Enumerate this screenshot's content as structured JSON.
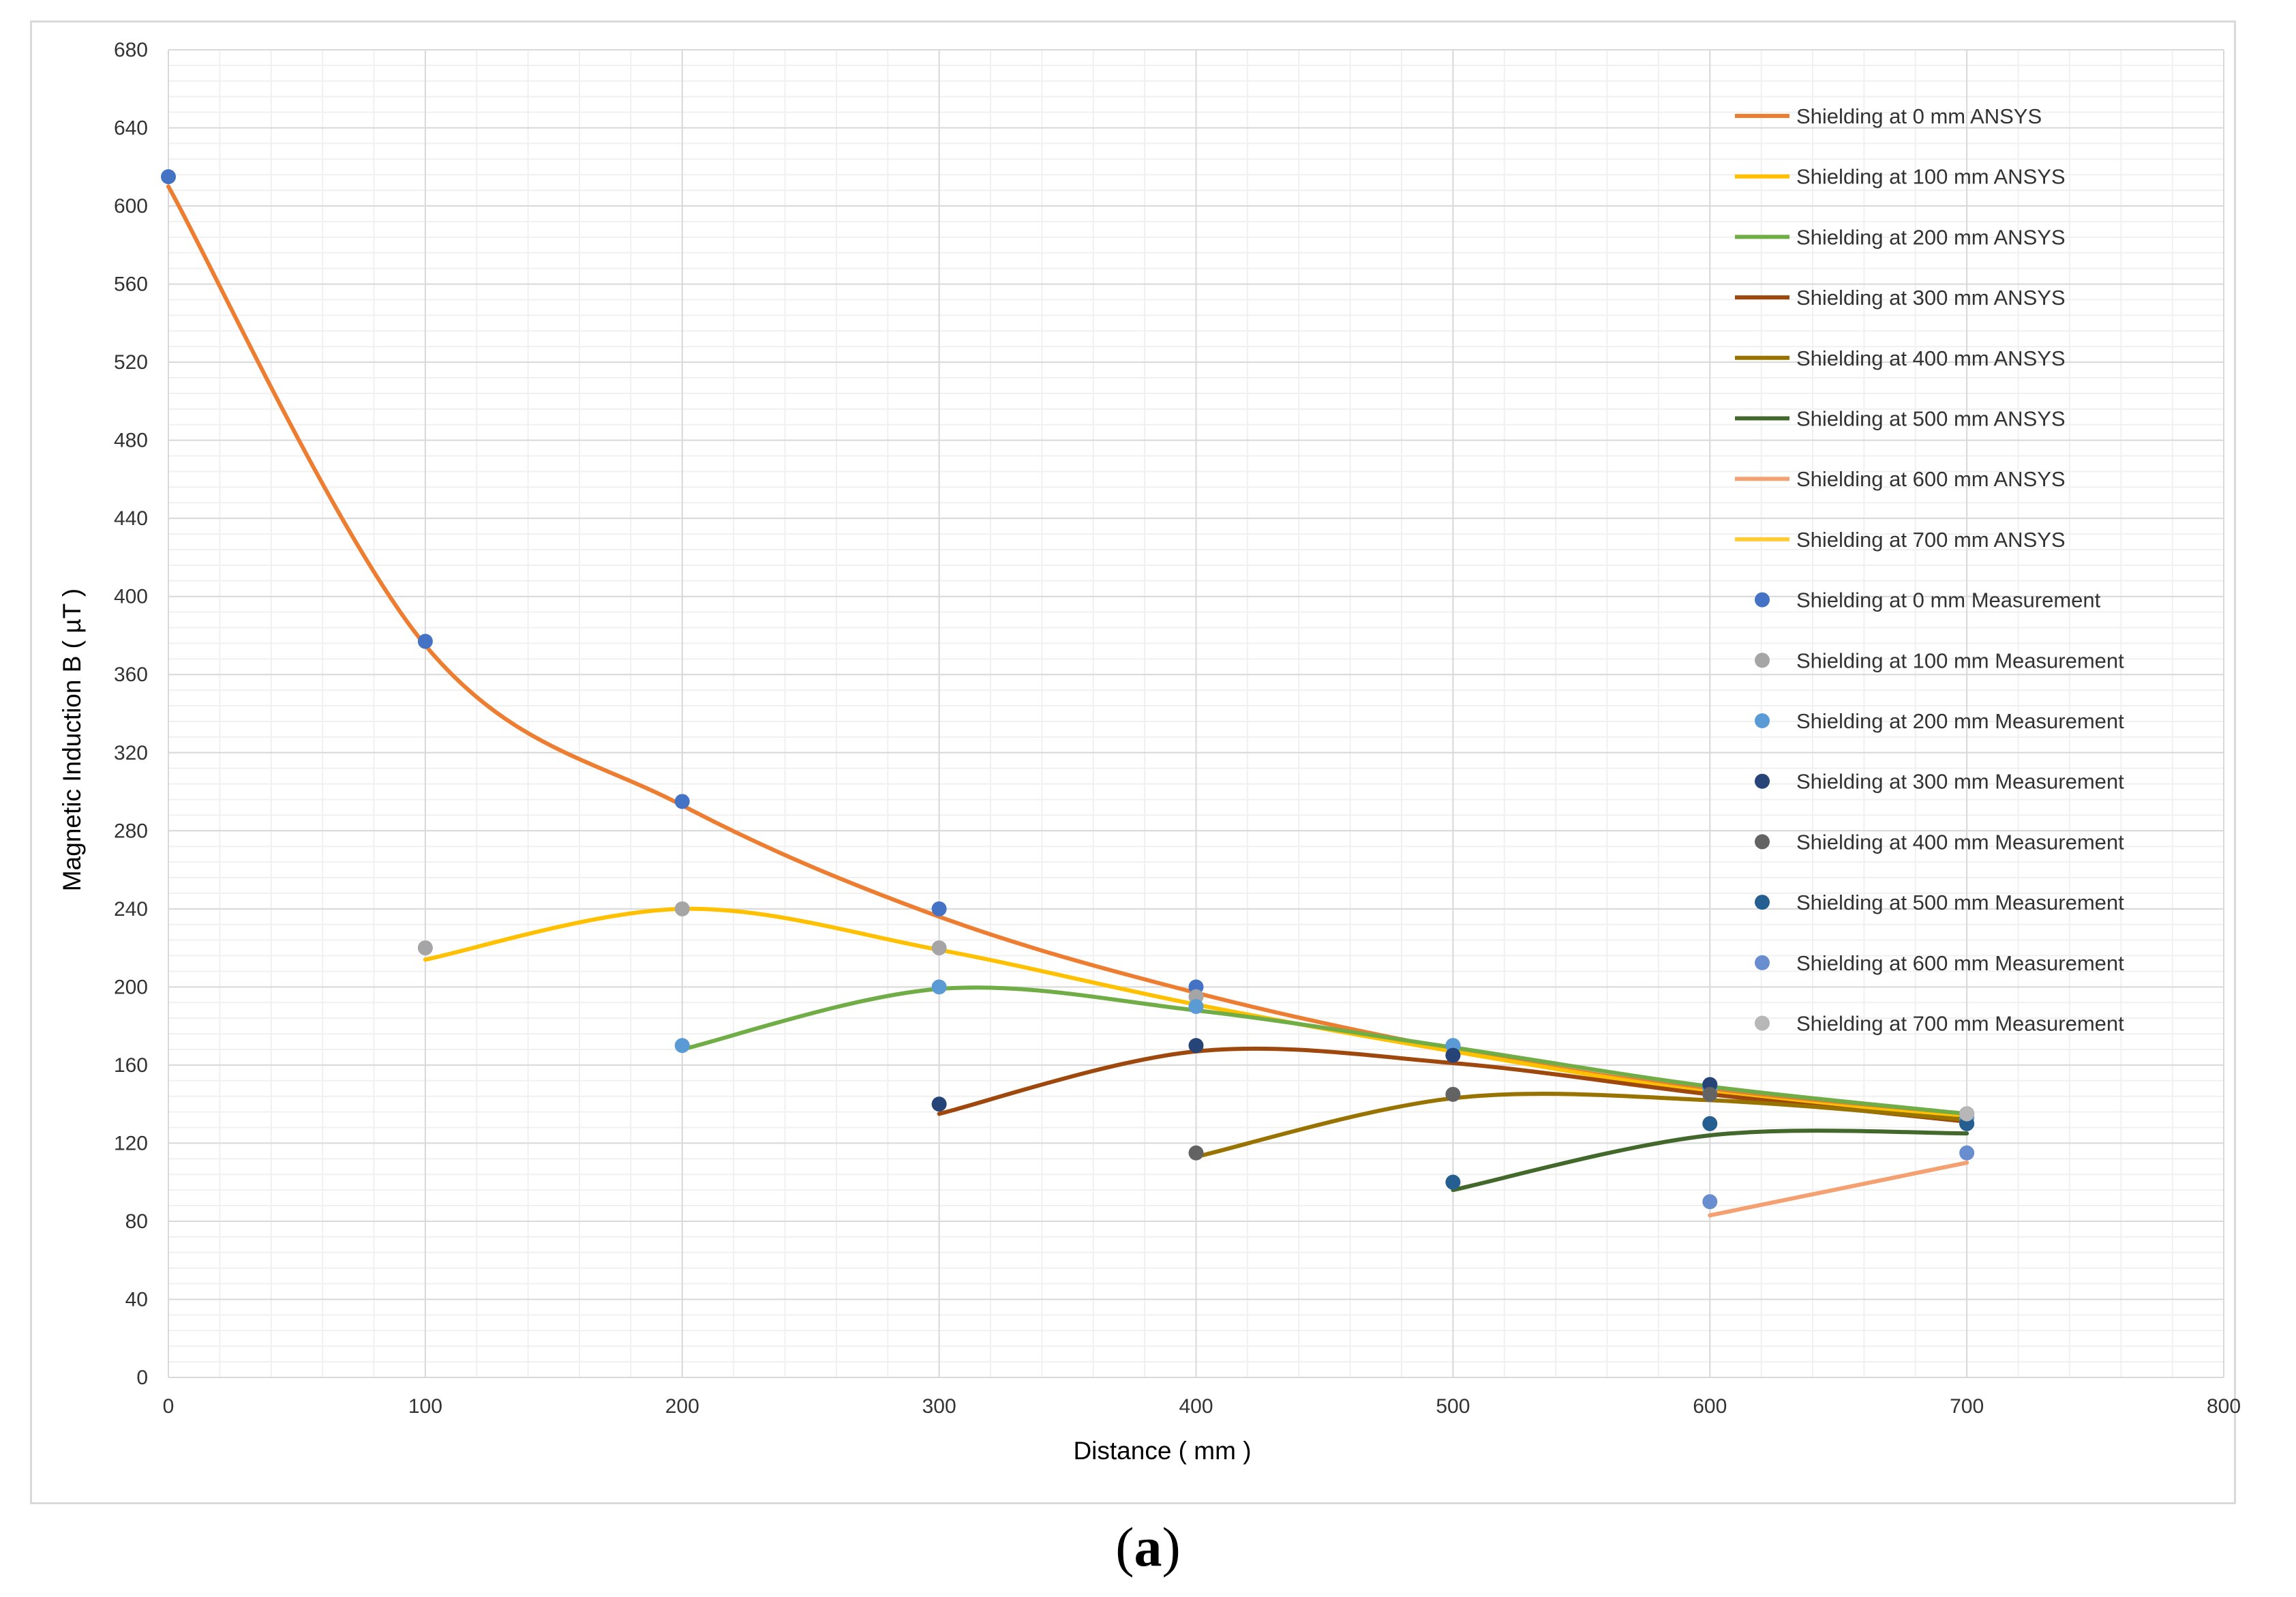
{
  "caption": {
    "open": "(",
    "letter": "a",
    "close": ")"
  },
  "chart_data": {
    "type": "line",
    "title": "",
    "xlabel": "Distance ( mm )",
    "ylabel": "Magnetic Induction B ( µT )",
    "xlim": [
      0,
      800
    ],
    "ylim": [
      0,
      680
    ],
    "xticks": [
      0,
      100,
      200,
      300,
      400,
      500,
      600,
      700,
      800
    ],
    "yticks": [
      0,
      40,
      80,
      120,
      160,
      200,
      240,
      280,
      320,
      360,
      400,
      440,
      480,
      520,
      560,
      600,
      640,
      680
    ],
    "grid": true,
    "legend_position": "right",
    "series": [
      {
        "name": "Shielding at 0 mm ANSYS",
        "kind": "line",
        "color": "#ED7D31",
        "x": [
          0,
          100,
          200,
          300,
          400,
          500,
          600,
          700
        ],
        "values": [
          610,
          375,
          293,
          236,
          197,
          168,
          147,
          134
        ]
      },
      {
        "name": "Shielding at 100 mm ANSYS",
        "kind": "line",
        "color": "#FFC000",
        "x": [
          100,
          200,
          300,
          400,
          500,
          600,
          700
        ],
        "values": [
          214,
          240,
          219,
          191,
          167,
          146,
          133
        ]
      },
      {
        "name": "Shielding at 200 mm ANSYS",
        "kind": "line",
        "color": "#70AD47",
        "x": [
          200,
          300,
          400,
          500,
          600,
          700
        ],
        "values": [
          168,
          199,
          188,
          169,
          149,
          135
        ]
      },
      {
        "name": "Shielding at 300 mm ANSYS",
        "kind": "line",
        "color": "#9E480E",
        "x": [
          300,
          400,
          500,
          600,
          700
        ],
        "values": [
          135,
          167,
          161,
          145,
          131
        ]
      },
      {
        "name": "Shielding at 400 mm ANSYS",
        "kind": "line",
        "color": "#997300",
        "x": [
          400,
          500,
          600,
          700
        ],
        "values": [
          113,
          143,
          142,
          132
        ]
      },
      {
        "name": "Shielding at 500 mm ANSYS",
        "kind": "line",
        "color": "#43682B",
        "x": [
          500,
          600,
          700
        ],
        "values": [
          96,
          124,
          125
        ]
      },
      {
        "name": "Shielding at 600 mm ANSYS",
        "kind": "line",
        "color": "#F4A071",
        "x": [
          600,
          700
        ],
        "values": [
          83,
          110
        ]
      },
      {
        "name": "Shielding at 700 mm ANSYS",
        "kind": "line",
        "color": "#FFCD33",
        "x": [
          700
        ],
        "values": [
          135
        ]
      },
      {
        "name": "Shielding at 0 mm Measurement",
        "kind": "marker",
        "color": "#4472C4",
        "x": [
          0,
          100,
          200,
          300,
          400,
          500,
          600,
          700
        ],
        "values": [
          615,
          377,
          295,
          240,
          200,
          170,
          150,
          130
        ]
      },
      {
        "name": "Shielding at 100 mm Measurement",
        "kind": "marker",
        "color": "#A5A5A5",
        "x": [
          100,
          200,
          300,
          400,
          500,
          600,
          700
        ],
        "values": [
          220,
          240,
          220,
          195,
          165,
          145,
          135
        ]
      },
      {
        "name": "Shielding at 200 mm Measurement",
        "kind": "marker",
        "color": "#5B9BD5",
        "x": [
          200,
          300,
          400,
          500,
          600,
          700
        ],
        "values": [
          170,
          200,
          190,
          170,
          148,
          133
        ]
      },
      {
        "name": "Shielding at 300 mm Measurement",
        "kind": "marker",
        "color": "#264478",
        "x": [
          300,
          400,
          500,
          600,
          700
        ],
        "values": [
          140,
          170,
          165,
          150,
          135
        ]
      },
      {
        "name": "Shielding at 400 mm Measurement",
        "kind": "marker",
        "color": "#636363",
        "x": [
          400,
          500,
          600,
          700
        ],
        "values": [
          115,
          145,
          145,
          135
        ]
      },
      {
        "name": "Shielding at 500 mm Measurement",
        "kind": "marker",
        "color": "#255E91",
        "x": [
          500,
          600,
          700
        ],
        "values": [
          100,
          130,
          130
        ]
      },
      {
        "name": "Shielding at 600 mm Measurement",
        "kind": "marker",
        "color": "#698ED0",
        "x": [
          600,
          700
        ],
        "values": [
          90,
          115
        ]
      },
      {
        "name": "Shielding at 700 mm Measurement",
        "kind": "marker",
        "color": "#B7B7B7",
        "x": [
          700
        ],
        "values": [
          135
        ]
      }
    ]
  }
}
